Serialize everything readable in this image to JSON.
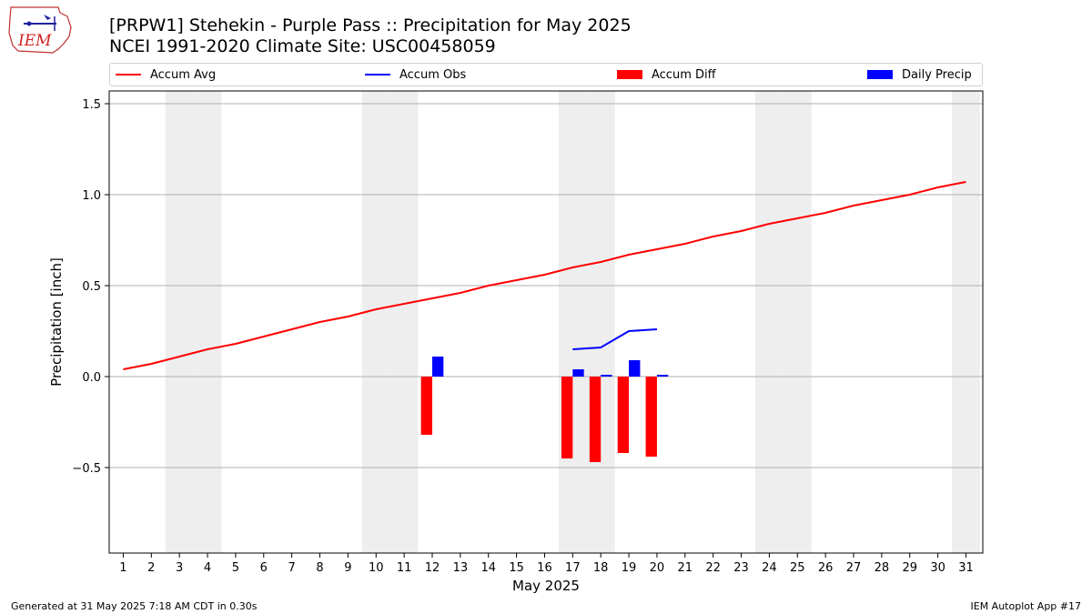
{
  "header": {
    "logo_text": "IEM",
    "title_line1": "[PRPW1] Stehekin - Purple Pass :: Precipitation for May 2025",
    "title_line2": "NCEI 1991-2020 Climate Site: USC00458059"
  },
  "legend": {
    "accum_avg": "Accum Avg",
    "accum_obs": "Accum Obs",
    "accum_diff": "Accum Diff",
    "daily_precip": "Daily Precip"
  },
  "colors": {
    "accum_avg": "#ff0000",
    "accum_obs": "#0000ff",
    "accum_diff": "#ff0000",
    "daily_precip": "#0000ff",
    "weekend_shade": "#eeeeee",
    "grid": "#b0b0b0"
  },
  "footer": {
    "generated": "Generated at 31 May 2025 7:18 AM CDT in 0.30s",
    "app": "IEM Autoplot App #17"
  },
  "chart_data": {
    "type": "line",
    "xlabel": "May 2025",
    "ylabel": "Precipitation [inch]",
    "xlim": [
      0.5,
      31.6
    ],
    "ylim": [
      -0.97,
      1.57
    ],
    "x_ticks": [
      1,
      2,
      3,
      4,
      5,
      6,
      7,
      8,
      9,
      10,
      11,
      12,
      13,
      14,
      15,
      16,
      17,
      18,
      19,
      20,
      21,
      22,
      23,
      24,
      25,
      26,
      27,
      28,
      29,
      30,
      31
    ],
    "y_ticks": [
      -0.5,
      0.0,
      0.5,
      1.0,
      1.5
    ],
    "y_tick_labels": [
      "−0.5",
      "0.0",
      "0.5",
      "1.0",
      "1.5"
    ],
    "grid": "horizontal",
    "legend_position": "top",
    "weekend_days": [
      3,
      4,
      10,
      11,
      17,
      18,
      24,
      25,
      31
    ],
    "accum_avg": {
      "days": [
        1,
        2,
        3,
        4,
        5,
        6,
        7,
        8,
        9,
        10,
        11,
        12,
        13,
        14,
        15,
        16,
        17,
        18,
        19,
        20,
        21,
        22,
        23,
        24,
        25,
        26,
        27,
        28,
        29,
        30,
        31
      ],
      "values": [
        0.04,
        0.07,
        0.11,
        0.15,
        0.18,
        0.22,
        0.26,
        0.3,
        0.33,
        0.37,
        0.4,
        0.43,
        0.46,
        0.5,
        0.53,
        0.56,
        0.6,
        0.63,
        0.67,
        0.7,
        0.73,
        0.77,
        0.8,
        0.84,
        0.87,
        0.9,
        0.94,
        0.97,
        1.0,
        1.04,
        1.07
      ]
    },
    "accum_obs": {
      "days": [
        17,
        18,
        19,
        20
      ],
      "values": [
        0.15,
        0.16,
        0.25,
        0.26
      ]
    },
    "accum_diff": {
      "days": [
        12,
        17,
        18,
        19,
        20
      ],
      "values": [
        -0.32,
        -0.45,
        -0.47,
        -0.42,
        -0.44
      ]
    },
    "daily_precip": {
      "days": [
        12,
        17,
        18,
        19,
        20
      ],
      "values": [
        0.11,
        0.04,
        0.01,
        0.09,
        0.01
      ]
    }
  }
}
